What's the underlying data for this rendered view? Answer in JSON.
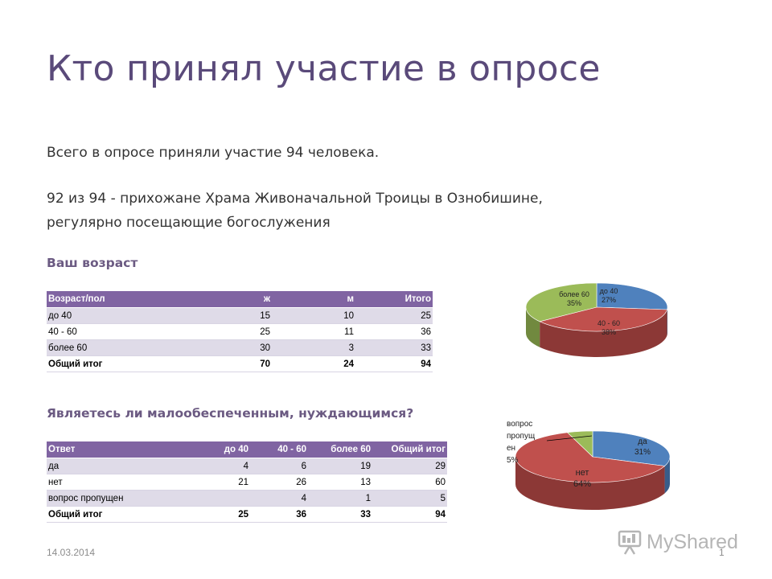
{
  "slide": {
    "title": "Кто принял участие в опросе",
    "intro": "Всего в опросе приняли участие 94 человека.",
    "note_line1": "92 из 94 - прихожане Храма Живоначальной Троицы в Ознобишине,",
    "note_line2": "регулярно посещающие богослужения",
    "date": "14.03.2014",
    "page_number": "1",
    "watermark": "MyShared"
  },
  "age_section": {
    "heading": "Ваш возраст",
    "table": {
      "headers": [
        "Возраст/пол",
        "ж",
        "м",
        "Итого"
      ],
      "rows": [
        [
          "до 40",
          "15",
          "10",
          "25"
        ],
        [
          "40 - 60",
          "25",
          "11",
          "36"
        ],
        [
          "более 60",
          "30",
          "3",
          "33"
        ]
      ],
      "total": [
        "Общий итог",
        "70",
        "24",
        "94"
      ]
    }
  },
  "need_section": {
    "heading": "Являетесь ли малообеспеченным,  нуждающимся?",
    "table": {
      "headers": [
        "Ответ",
        "до 40",
        "40 - 60",
        "более 60",
        "Общий итог"
      ],
      "rows": [
        [
          "да",
          "4",
          "6",
          "19",
          "29"
        ],
        [
          "нет",
          "21",
          "26",
          "13",
          "60"
        ],
        [
          "вопрос пропущен",
          "",
          "4",
          "1",
          "5"
        ]
      ],
      "total": [
        "Общий итог",
        "25",
        "36",
        "33",
        "94"
      ]
    }
  },
  "chart_data": [
    {
      "type": "pie",
      "title": "",
      "style": "3d",
      "slices": [
        {
          "label_lines": [
            "до 40"
          ],
          "percent": 27,
          "value": 25,
          "color": "#4f81bd",
          "side": "#385d8a"
        },
        {
          "label_lines": [
            "40 - 60"
          ],
          "percent": 38,
          "value": 36,
          "color": "#c0504d",
          "side": "#8c3836"
        },
        {
          "label_lines": [
            "более 60"
          ],
          "percent": 35,
          "value": 33,
          "color": "#9bbb59",
          "side": "#71893f"
        }
      ]
    },
    {
      "type": "pie",
      "title": "",
      "style": "3d",
      "slices": [
        {
          "label_lines": [
            "да"
          ],
          "percent": 31,
          "value": 29,
          "color": "#4f81bd",
          "side": "#385d8a"
        },
        {
          "label_lines": [
            "нет"
          ],
          "percent": 64,
          "value": 60,
          "color": "#c0504d",
          "side": "#8c3836"
        },
        {
          "label_lines": [
            "вопрос",
            "пропущ",
            "ен"
          ],
          "percent": 5,
          "value": 5,
          "color": "#9bbb59",
          "side": "#71893f"
        }
      ]
    }
  ]
}
